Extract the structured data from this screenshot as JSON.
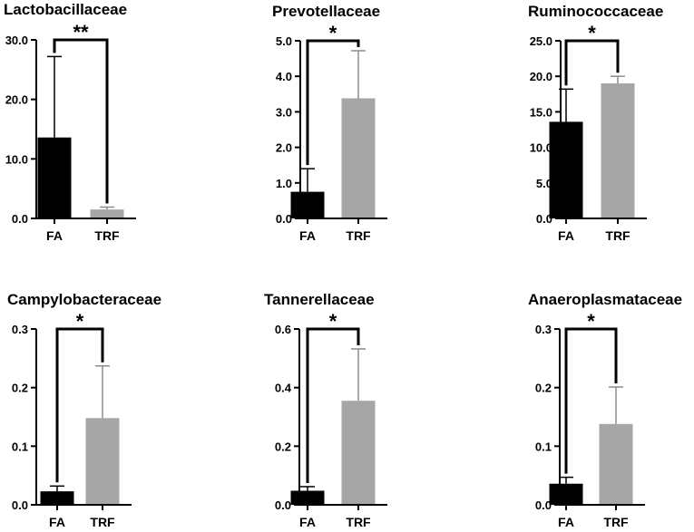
{
  "colors": {
    "FA": "#000000",
    "TRF": "#a6a6a6",
    "axis": "#000000"
  },
  "chart_data": [
    {
      "type": "bar",
      "title": "Lactobacillaceae",
      "categories": [
        "FA",
        "TRF"
      ],
      "values": [
        13.6,
        1.5
      ],
      "errors": [
        27.2,
        1.9
      ],
      "ylim": [
        0,
        30
      ],
      "yticks": [
        0,
        10,
        20,
        30
      ],
      "ytick_labels": [
        "0.0",
        "10.0",
        "20.0",
        "30.0"
      ],
      "significance": "**"
    },
    {
      "type": "bar",
      "title": "Prevotellaceae",
      "categories": [
        "FA",
        "TRF"
      ],
      "values": [
        0.75,
        3.38
      ],
      "errors": [
        1.4,
        4.72
      ],
      "ylim": [
        0,
        5
      ],
      "yticks": [
        0,
        1,
        2,
        3,
        4,
        5
      ],
      "ytick_labels": [
        "0.0",
        "1.0",
        "2.0",
        "3.0",
        "4.0",
        "5.0"
      ],
      "significance": "*"
    },
    {
      "type": "bar",
      "title": "Ruminococcaceae",
      "categories": [
        "FA",
        "TRF"
      ],
      "values": [
        13.6,
        19.0
      ],
      "errors": [
        18.2,
        20.0
      ],
      "ylim": [
        0,
        25
      ],
      "yticks": [
        0,
        5,
        10,
        15,
        20,
        25
      ],
      "ytick_labels": [
        "0.0",
        "5.0",
        "10.0",
        "15.0",
        "20.0",
        "25.0"
      ],
      "significance": "*"
    },
    {
      "type": "bar",
      "title": "Campylobacteraceae",
      "categories": [
        "FA",
        "TRF"
      ],
      "values": [
        0.023,
        0.148
      ],
      "errors": [
        0.032,
        0.237
      ],
      "ylim": [
        0,
        0.3
      ],
      "yticks": [
        0,
        0.1,
        0.2,
        0.3
      ],
      "ytick_labels": [
        "0.0",
        "0.1",
        "0.2",
        "0.3"
      ],
      "significance": "*"
    },
    {
      "type": "bar",
      "title": "Tannerellaceae",
      "categories": [
        "FA",
        "TRF"
      ],
      "values": [
        0.048,
        0.355
      ],
      "errors": [
        0.062,
        0.532
      ],
      "ylim": [
        0,
        0.6
      ],
      "yticks": [
        0,
        0.2,
        0.4,
        0.6
      ],
      "ytick_labels": [
        "0.0",
        "0.2",
        "0.4",
        "0.6"
      ],
      "significance": "*"
    },
    {
      "type": "bar",
      "title": "Anaeroplasmataceae",
      "categories": [
        "FA",
        "TRF"
      ],
      "values": [
        0.036,
        0.138
      ],
      "errors": [
        0.047,
        0.201
      ],
      "ylim": [
        0,
        0.3
      ],
      "yticks": [
        0,
        0.1,
        0.2,
        0.3
      ],
      "ytick_labels": [
        "0.0",
        "0.1",
        "0.2",
        "0.3"
      ],
      "significance": "*"
    }
  ]
}
